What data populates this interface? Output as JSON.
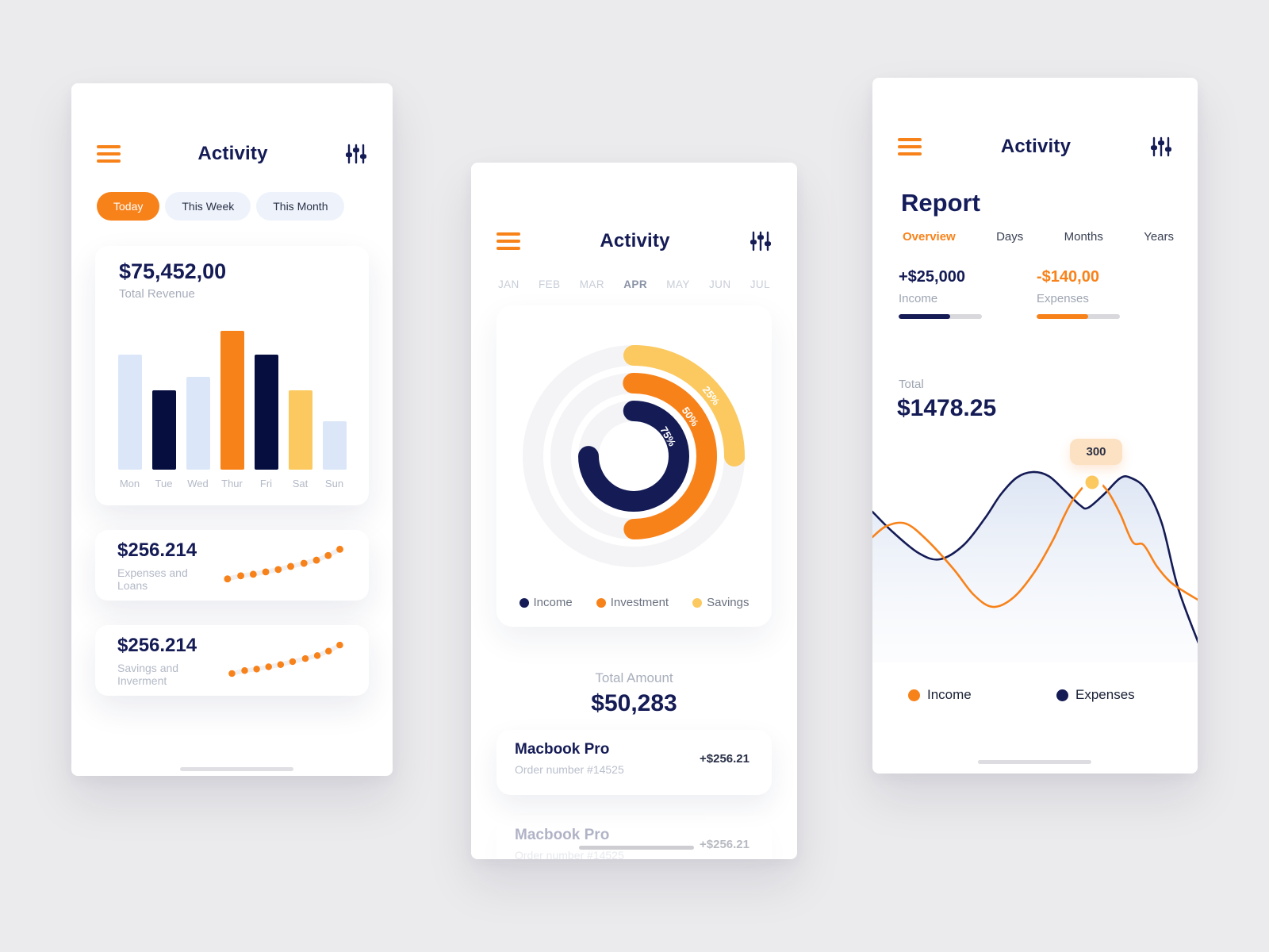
{
  "colors": {
    "background": "#EBEAEC",
    "navy": "#141B55",
    "navy_dark": "#060E3F",
    "orange": "#F8821A",
    "yellow": "#FBC95F",
    "light_blue": "#DBE7F8",
    "pill_bg": "#EEF3FB",
    "gray_text": "#A7ADBA",
    "donut_track": "#F4F4F6",
    "progress_track": "#D8D8DD",
    "tooltip_bg": "#FCE1C3"
  },
  "screen1": {
    "title": "Activity",
    "menu_icon": "hamburger-menu",
    "filter_icon": "sliders-filter",
    "tabs": [
      {
        "label": "Today",
        "active": true
      },
      {
        "label": "This Week",
        "active": false
      },
      {
        "label": "This Month",
        "active": false
      }
    ],
    "revenue": {
      "amount": "$75,452,00",
      "label": "Total Revenue"
    },
    "stat_cards": [
      {
        "amount": "$256.214",
        "label": "Expenses and Loans"
      },
      {
        "amount": "$256.214",
        "label": "Savings and Inverment"
      }
    ]
  },
  "screen2": {
    "title": "Activity",
    "months": [
      "JAN",
      "FEB",
      "MAR",
      "APR",
      "MAY",
      "JUN",
      "JUL"
    ],
    "active_month": "APR",
    "total_label": "Total Amount",
    "total_amount": "$50,283",
    "transactions": [
      {
        "name": "Macbook Pro",
        "order": "Order number #14525",
        "amount": "+$256.21",
        "faded": false
      },
      {
        "name": "Macbook Pro",
        "order": "Order number #14525",
        "amount": "+$256.21",
        "faded": true
      }
    ]
  },
  "screen3": {
    "title": "Activity",
    "heading": "Report",
    "tabs": [
      {
        "label": "Overview",
        "active": true
      },
      {
        "label": "Days",
        "active": false
      },
      {
        "label": "Months",
        "active": false
      },
      {
        "label": "Years",
        "active": false
      }
    ],
    "stats": [
      {
        "amount": "+$25,000",
        "label": "Income",
        "progress_pct": 62,
        "color": "#141B55"
      },
      {
        "amount": "-$140,00",
        "label": "Expenses",
        "progress_pct": 62,
        "color": "#F8821A"
      }
    ],
    "total_label": "Total",
    "total_amount": "$1478.25",
    "tooltip": "300",
    "legend": [
      {
        "label": "Income",
        "color": "#F8821A"
      },
      {
        "label": "Expenses",
        "color": "#141B55"
      }
    ]
  },
  "chart_data": [
    {
      "id": "weekly-bars",
      "type": "bar",
      "title": "Total Revenue $75,452,00",
      "categories": [
        "Mon",
        "Tue",
        "Wed",
        "Thur",
        "Fri",
        "Sat",
        "Sun"
      ],
      "values": [
        83,
        57,
        67,
        100,
        83,
        57,
        35
      ],
      "ylim": [
        0,
        100
      ],
      "ylabel": "",
      "xlabel": "",
      "grid": false,
      "bar_colors": [
        "#DBE7F8",
        "#060E3F",
        "#DBE7F8",
        "#F8821A",
        "#060E3F",
        "#FBC95F",
        "#DBE7F8"
      ]
    },
    {
      "id": "radial-progress",
      "type": "pie",
      "subtype": "concentric-radial-progress",
      "start": "top",
      "direction": "clockwise",
      "rings": [
        {
          "label": "Savings",
          "value": 25,
          "display": "25%",
          "color": "#FBC95F"
        },
        {
          "label": "Investment",
          "value": 50,
          "display": "50%",
          "color": "#F8821A"
        },
        {
          "label": "Income",
          "value": 75,
          "display": "75%",
          "color": "#141B55"
        }
      ],
      "legend": [
        {
          "label": "Income",
          "color": "#141B55"
        },
        {
          "label": "Investment",
          "color": "#F8821A"
        },
        {
          "label": "Savings",
          "color": "#FBC95F"
        }
      ],
      "legend_position": "bottom"
    },
    {
      "id": "report-lines",
      "type": "line",
      "grid": false,
      "axes_hidden": true,
      "series": [
        {
          "name": "Expenses",
          "color": "#141B55",
          "area_fill": true,
          "points": [
            [
              0,
              100
            ],
            [
              25,
              125
            ],
            [
              58,
              152
            ],
            [
              85,
              160
            ],
            [
              115,
              142
            ],
            [
              142,
              108
            ],
            [
              162,
              78
            ],
            [
              182,
              57
            ],
            [
              202,
              50
            ],
            [
              222,
              55
            ],
            [
              242,
              73
            ],
            [
              262,
              92
            ],
            [
              272,
              95
            ],
            [
              292,
              78
            ],
            [
              312,
              58
            ],
            [
              325,
              57
            ],
            [
              345,
              72
            ],
            [
              365,
              115
            ],
            [
              385,
              195
            ],
            [
              412,
              268
            ]
          ]
        },
        {
          "name": "Income",
          "color": "#F8821A",
          "area_fill": false,
          "points": [
            [
              0,
              132
            ],
            [
              18,
              118
            ],
            [
              42,
              115
            ],
            [
              68,
              135
            ],
            [
              102,
              172
            ],
            [
              128,
              205
            ],
            [
              152,
              220
            ],
            [
              178,
              208
            ],
            [
              205,
              175
            ],
            [
              228,
              135
            ],
            [
              242,
              105
            ],
            [
              255,
              82
            ],
            [
              277,
              60
            ],
            [
              295,
              72
            ],
            [
              312,
              102
            ],
            [
              328,
              138
            ],
            [
              342,
              142
            ],
            [
              358,
              168
            ],
            [
              375,
              188
            ],
            [
              392,
              200
            ],
            [
              412,
              212
            ]
          ]
        }
      ],
      "annotation": {
        "text": "300",
        "x": 277,
        "y": 63,
        "marker_color": "#FBC95F"
      }
    },
    {
      "id": "trend-dots",
      "type": "scatter",
      "color": "#F8821A",
      "points": [
        [
          10,
          47
        ],
        [
          27,
          43
        ],
        [
          43,
          41
        ],
        [
          59,
          38
        ],
        [
          75,
          35
        ],
        [
          91,
          31
        ],
        [
          108,
          27
        ],
        [
          124,
          23
        ],
        [
          139,
          17
        ],
        [
          154,
          9
        ]
      ]
    }
  ]
}
